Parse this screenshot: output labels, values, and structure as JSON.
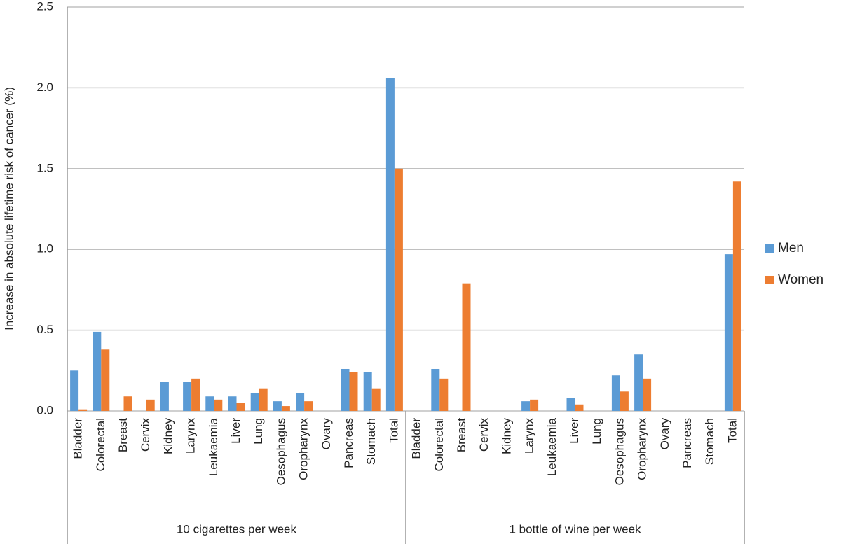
{
  "chart_data": {
    "type": "bar",
    "y_label": "Increase in absolute lifetime risk of cancer (%)",
    "groups": [
      {
        "name": "10 cigarettes per week",
        "categories": [
          "Bladder",
          "Colorectal",
          "Breast",
          "Cervix",
          "Kidney",
          "Larynx",
          "Leukaemia",
          "Liver",
          "Lung",
          "Oesophagus",
          "Oropharynx",
          "Ovary",
          "Pancreas",
          "Stomach",
          "Total"
        ]
      },
      {
        "name": "1 bottle of wine per week",
        "categories": [
          "Bladder",
          "Colorectal",
          "Breast",
          "Cervix",
          "Kidney",
          "Larynx",
          "Leukaemia",
          "Liver",
          "Lung",
          "Oesophagus",
          "Oropharynx",
          "Ovary",
          "Pancreas",
          "Stomach",
          "Total"
        ]
      }
    ],
    "series": [
      {
        "name": "Men",
        "color": "#5b9bd5",
        "values": [
          0.25,
          0.49,
          0,
          0,
          0.18,
          0.18,
          0.09,
          0.09,
          0.11,
          0.06,
          0.11,
          0,
          0.26,
          0.24,
          2.06,
          0,
          0.26,
          0,
          0,
          0,
          0.06,
          0,
          0.08,
          0,
          0.22,
          0.35,
          0,
          0,
          0,
          0.97
        ]
      },
      {
        "name": "Women",
        "color": "#ed7d31",
        "values": [
          0.01,
          0.38,
          0.09,
          0.07,
          0,
          0.2,
          0.07,
          0.05,
          0.14,
          0.03,
          0.06,
          0,
          0.24,
          0.14,
          1.5,
          0,
          0.2,
          0.79,
          0,
          0,
          0.07,
          0,
          0.04,
          0,
          0.12,
          0.2,
          0,
          0,
          0,
          1.42
        ]
      }
    ],
    "ylim": [
      0,
      2.5
    ],
    "yticks": [
      {
        "value": 0,
        "label": "0.0"
      },
      0.5,
      {
        "value": 1,
        "label": "1.0"
      },
      1.5,
      {
        "value": 2,
        "label": "2.0"
      },
      2.5
    ],
    "grid": true,
    "legend": "right"
  }
}
